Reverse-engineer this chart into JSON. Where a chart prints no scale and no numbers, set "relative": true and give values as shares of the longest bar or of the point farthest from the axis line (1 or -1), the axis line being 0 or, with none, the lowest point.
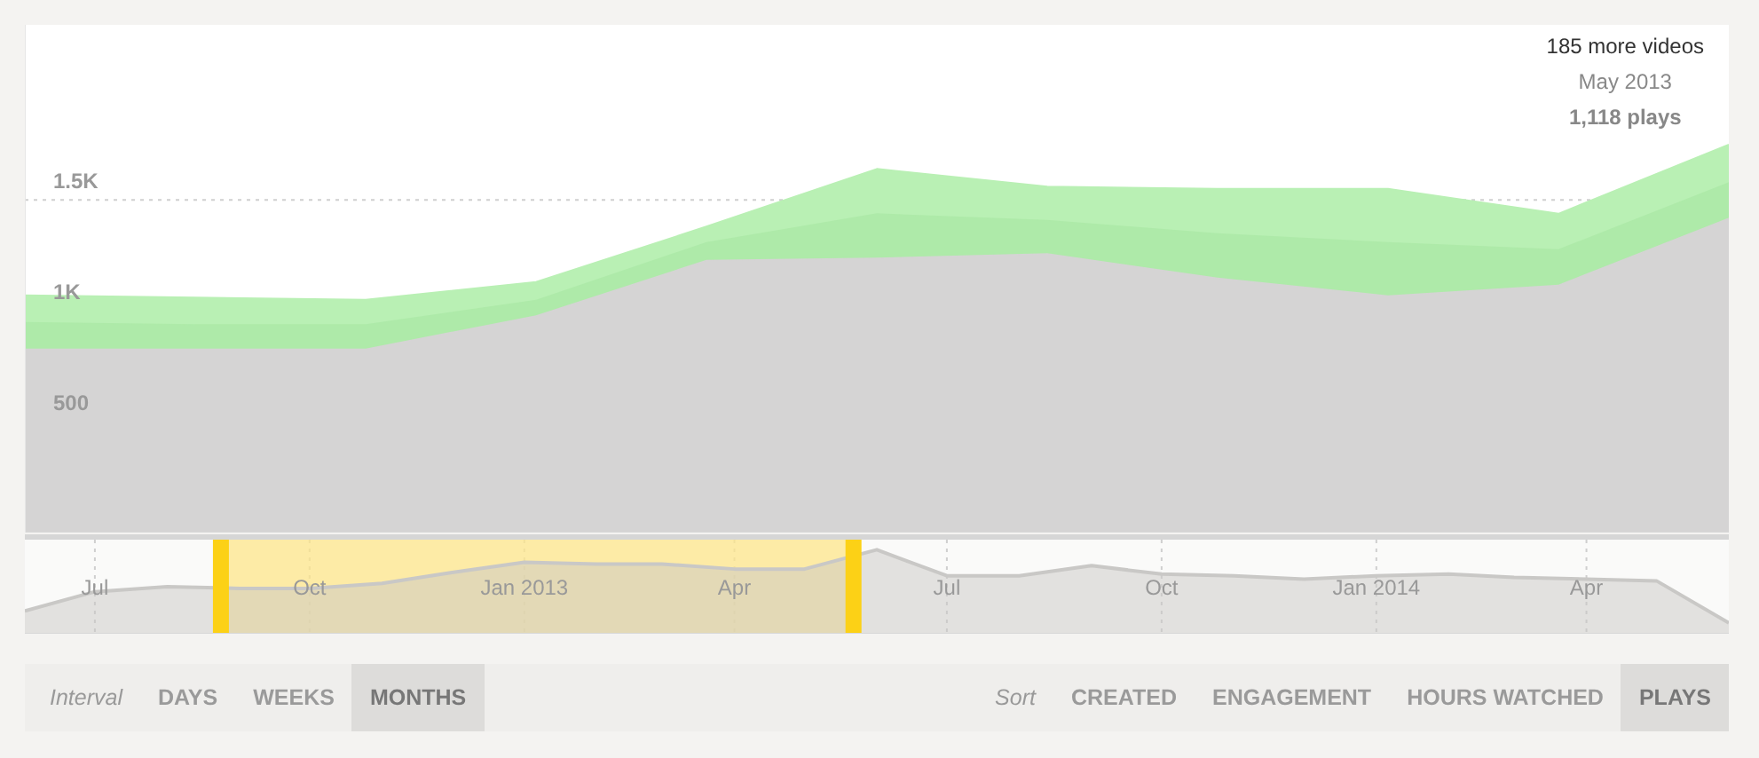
{
  "chart_data": [
    {
      "type": "area",
      "stacked": true,
      "categories": [
        null,
        null,
        null,
        null,
        null,
        null,
        null,
        null,
        null,
        null,
        null
      ],
      "series": [
        {
          "color": "#d5d4d4",
          "values": [
            830,
            830,
            830,
            980,
            1230,
            1240,
            1260,
            1150,
            1070,
            1118,
            1420
          ]
        },
        {
          "color": "#aeeaa9",
          "values": [
            120,
            110,
            110,
            70,
            80,
            200,
            150,
            200,
            240,
            160,
            160
          ]
        },
        {
          "color": "#b9f0b4",
          "values": [
            120,
            120,
            110,
            80,
            70,
            200,
            150,
            200,
            240,
            160,
            170
          ]
        }
      ],
      "ylim": [
        0,
        2290
      ],
      "yticks": [
        {
          "value": 500,
          "label": "500"
        },
        {
          "value": 1000,
          "label": "1K"
        },
        {
          "value": 1500,
          "label": "1.5K"
        }
      ],
      "grid": true,
      "tick_labels": "y",
      "annotations": [
        "185 more videos",
        "May 2013",
        "1,118 plays"
      ]
    },
    {
      "type": "area",
      "relative": true,
      "x": [
        "2012-06",
        "2012-07",
        "2012-08",
        "2012-09",
        "2012-10",
        "2012-11",
        "2012-12",
        "2013-01",
        "2013-02",
        "2013-03",
        "2013-04",
        "2013-05",
        "2013-06",
        "2013-07",
        "2013-08",
        "2013-09",
        "2013-10",
        "2013-11",
        "2013-12",
        "2014-01",
        "2014-02",
        "2014-03",
        "2014-04",
        "2014-05",
        "2014-06"
      ],
      "series": [
        {
          "color": "#c9c8c6",
          "values": [
            0.27,
            0.5,
            0.56,
            0.54,
            0.54,
            0.6,
            0.73,
            0.85,
            0.83,
            0.83,
            0.77,
            0.77,
            1,
            0.69,
            0.69,
            0.81,
            0.71,
            0.69,
            0.65,
            0.69,
            0.71,
            0.67,
            0.65,
            0.63,
            0.13
          ]
        }
      ],
      "xlim": [
        "2012-06",
        "2014-06"
      ],
      "xticks": [
        {
          "value": "2012-07",
          "label": "Jul"
        },
        {
          "value": "2012-10",
          "label": "Oct"
        },
        {
          "value": "2013-01",
          "label": "Jan 2013"
        },
        {
          "value": "2013-04",
          "label": "Apr"
        },
        {
          "value": "2013-07",
          "label": "Jul"
        },
        {
          "value": "2013-10",
          "label": "Oct"
        },
        {
          "value": "2014-01",
          "label": "Jan 2014"
        },
        {
          "value": "2014-04",
          "label": "Apr"
        }
      ],
      "grid": "x",
      "tick_labels": "x",
      "bands": [
        {
          "axis": "x",
          "from": "2012-08-24",
          "to": "2013-05-22",
          "color": "#fde68a"
        }
      ],
      "ref_lines": [
        {
          "axis": "x",
          "value": "2012-08-24",
          "color": "#fcd116"
        },
        {
          "axis": "x",
          "value": "2013-05-22",
          "color": "#fcd116"
        }
      ]
    },
    {
      "type": "other",
      "annotations": [
        "Interval",
        "DAYS",
        "WEEKS",
        "MONTHS",
        "Sort",
        "CREATED",
        "ENGAGEMENT",
        "HOURS WATCHED",
        "PLAYS"
      ]
    }
  ]
}
